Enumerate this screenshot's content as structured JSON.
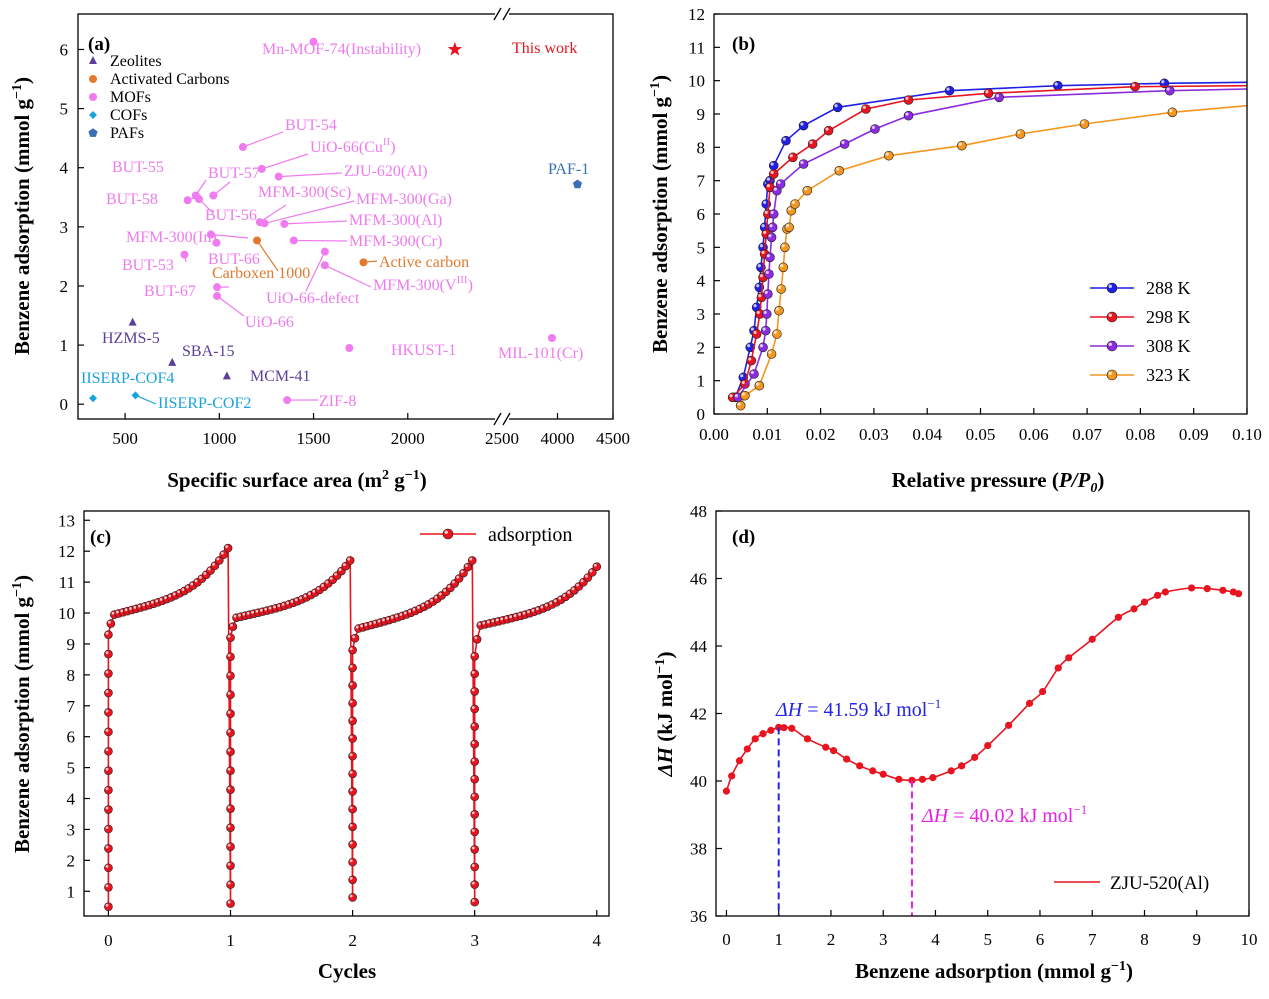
{
  "chart_data": [
    {
      "panel": "(a)",
      "type": "scatter",
      "xlabel": "Specific surface area (m² g⁻¹)",
      "ylabel": "Benzene adsorption (mmol g⁻¹)",
      "x_ticks": [
        "500",
        "1000",
        "1500",
        "2000",
        "2500",
        "4000",
        "4500"
      ],
      "y_ticks": [
        "0",
        "1",
        "2",
        "3",
        "4",
        "5",
        "6"
      ],
      "xlim_segments": [
        [
          250,
          2500
        ],
        [
          3500,
          4500
        ]
      ],
      "ylim": [
        -0.25,
        6.6
      ],
      "legend": {
        "placement": "top-left",
        "entries": [
          {
            "name": "Zeolites",
            "color": "#5b3f9a",
            "marker": "triangle"
          },
          {
            "name": "Activated Carbons",
            "color": "#e17a2e",
            "marker": "circle"
          },
          {
            "name": "MOFs",
            "color": "#ef7bef",
            "marker": "circle"
          },
          {
            "name": "COFs",
            "color": "#1ba3dd",
            "marker": "diamond"
          },
          {
            "name": "PAFs",
            "color": "#3a6fb5",
            "marker": "pentagon"
          }
        ],
        "this_work": {
          "name": "This work",
          "color": "#e8141f",
          "marker": "star"
        }
      },
      "points": [
        {
          "label": "Mn-MOF-74(Instability)",
          "x": 1500,
          "y": 6.13,
          "cls": "MOFs"
        },
        {
          "label": "BUT-54",
          "x": 1125,
          "y": 4.35,
          "cls": "MOFs"
        },
        {
          "label": "UiO-66(Cu",
          "sup": "II",
          "suffix": ")",
          "x": 1225,
          "y": 3.98,
          "cls": "MOFs"
        },
        {
          "label": "ZJU-620(Al)",
          "x": 1315,
          "y": 3.85,
          "cls": "MOFs"
        },
        {
          "label": "BUT-57",
          "x": 968,
          "y": 3.53,
          "cls": "MOFs"
        },
        {
          "label": "BUT-55",
          "x": 875,
          "y": 3.53,
          "cls": "MOFs"
        },
        {
          "label": "BUT-58",
          "x": 832,
          "y": 3.45,
          "cls": "MOFs"
        },
        {
          "label": "BUT-56",
          "x": 892,
          "y": 3.47,
          "cls": "MOFs"
        },
        {
          "label": "MFM-300(Sc)",
          "x": 1215,
          "y": 3.08,
          "cls": "MOFs"
        },
        {
          "label": "MFM-300(Ga)",
          "x": 1240,
          "y": 3.06,
          "cls": "MOFs"
        },
        {
          "label": "MFM-300(Al)",
          "x": 1345,
          "y": 3.05,
          "cls": "MOFs"
        },
        {
          "label": "MFM-300(In)",
          "x": 955,
          "y": 2.87,
          "cls": "MOFs"
        },
        {
          "label": "MFM-300(Cr)",
          "x": 1395,
          "y": 2.77,
          "cls": "MOFs"
        },
        {
          "label": "BUT-66",
          "x": 985,
          "y": 2.73,
          "cls": "MOFs"
        },
        {
          "label": "BUT-53",
          "x": 815,
          "y": 2.53,
          "cls": "MOFs"
        },
        {
          "label": "UiO-66-defect",
          "x": 1560,
          "y": 2.58,
          "cls": "MOFs"
        },
        {
          "label": "MFM-300(V",
          "sup": "III",
          "suffix": ")",
          "x": 1560,
          "y": 2.35,
          "cls": "MOFs"
        },
        {
          "label": "BUT-67",
          "x": 988,
          "y": 1.98,
          "cls": "MOFs"
        },
        {
          "label": "UiO-66",
          "x": 988,
          "y": 1.83,
          "cls": "MOFs"
        },
        {
          "label": "HKUST-1",
          "x": 1690,
          "y": 0.95,
          "cls": "MOFs"
        },
        {
          "label": "MIL-101(Cr)",
          "x": 3950,
          "y": 1.12,
          "cls": "MOFs"
        },
        {
          "label": "ZIF-8",
          "x": 1360,
          "y": 0.07,
          "cls": "MOFs"
        },
        {
          "label": "Carboxen 1000",
          "x": 1200,
          "y": 2.77,
          "cls": "Activated Carbons"
        },
        {
          "label": "Active carbon",
          "x": 1765,
          "y": 2.4,
          "cls": "Activated Carbons"
        },
        {
          "label": "HZMS-5",
          "x": 540,
          "y": 1.38,
          "cls": "Zeolites"
        },
        {
          "label": "SBA-15",
          "x": 750,
          "y": 0.7,
          "cls": "Zeolites"
        },
        {
          "label": "MCM-41",
          "x": 1040,
          "y": 0.47,
          "cls": "Zeolites"
        },
        {
          "label": "IISERP-COF4",
          "x": 330,
          "y": 0.1,
          "cls": "COFs"
        },
        {
          "label": "IISERP-COF2",
          "x": 555,
          "y": 0.15,
          "cls": "COFs"
        },
        {
          "label": "PAF-1",
          "x": 4180,
          "y": 3.72,
          "cls": "PAFs"
        },
        {
          "label": "This work",
          "x": 2250,
          "y": 6.0,
          "cls": "This work"
        }
      ]
    },
    {
      "panel": "(b)",
      "type": "line",
      "xlabel": "Relative pressure (P/P₀)",
      "ylabel": "Benzene adsorption (mmol g⁻¹)",
      "x_ticks": [
        "0.00",
        "0.01",
        "0.02",
        "0.03",
        "0.04",
        "0.05",
        "0.06",
        "0.07",
        "0.08",
        "0.09",
        "0.10"
      ],
      "y_ticks": [
        "0",
        "1",
        "2",
        "3",
        "4",
        "5",
        "6",
        "7",
        "8",
        "9",
        "10",
        "11",
        "12"
      ],
      "xlim": [
        0,
        0.1
      ],
      "ylim": [
        0,
        12
      ],
      "legend": {
        "placement": "bottom-right"
      },
      "series": [
        {
          "name": "288 K",
          "color": "#1f1fe6",
          "x": [
            0.004,
            0.0055,
            0.0068,
            0.0075,
            0.008,
            0.0085,
            0.0088,
            0.0092,
            0.0095,
            0.0098,
            0.0101,
            0.0105,
            0.0112,
            0.0135,
            0.0168,
            0.0232,
            0.0442,
            0.0645,
            0.0845,
            0.1
          ],
          "y": [
            0.5,
            1.1,
            2.0,
            2.5,
            3.2,
            3.8,
            4.4,
            5.0,
            5.6,
            6.3,
            6.9,
            7.0,
            7.45,
            8.2,
            8.65,
            9.2,
            9.7,
            9.85,
            9.92,
            9.95
          ]
        },
        {
          "name": "298 K",
          "color": "#e8141f",
          "x": [
            0.0035,
            0.0058,
            0.007,
            0.008,
            0.0086,
            0.0089,
            0.0092,
            0.0095,
            0.0098,
            0.0101,
            0.0105,
            0.0112,
            0.0148,
            0.0185,
            0.0215,
            0.0285,
            0.0365,
            0.0515,
            0.079,
            0.1
          ],
          "y": [
            0.5,
            0.9,
            1.6,
            2.4,
            3.0,
            3.5,
            4.1,
            4.8,
            5.4,
            6.0,
            6.8,
            7.2,
            7.7,
            8.1,
            8.5,
            9.15,
            9.42,
            9.62,
            9.82,
            9.85
          ]
        },
        {
          "name": "308 K",
          "color": "#8b2be2",
          "x": [
            0.0045,
            0.0075,
            0.0092,
            0.0097,
            0.0099,
            0.0101,
            0.0103,
            0.0105,
            0.0108,
            0.011,
            0.0112,
            0.0118,
            0.0125,
            0.0168,
            0.0245,
            0.0302,
            0.0365,
            0.0535,
            0.0855,
            0.1
          ],
          "y": [
            0.5,
            1.2,
            2.0,
            2.5,
            3.0,
            3.6,
            4.2,
            4.7,
            5.3,
            5.6,
            6.0,
            6.7,
            6.9,
            7.5,
            8.1,
            8.55,
            8.95,
            9.5,
            9.7,
            9.75
          ]
        },
        {
          "name": "323 K",
          "color": "#f5961e",
          "x": [
            0.005,
            0.0058,
            0.0085,
            0.0108,
            0.0118,
            0.0122,
            0.0126,
            0.013,
            0.0133,
            0.0137,
            0.0141,
            0.0145,
            0.0152,
            0.0175,
            0.0235,
            0.0328,
            0.0465,
            0.0575,
            0.0695,
            0.086,
            0.1
          ],
          "y": [
            0.25,
            0.55,
            0.85,
            1.8,
            2.4,
            3.1,
            3.75,
            4.4,
            5.0,
            5.55,
            5.6,
            6.1,
            6.3,
            6.7,
            7.3,
            7.75,
            8.05,
            8.4,
            8.7,
            9.05,
            9.25
          ]
        }
      ]
    },
    {
      "panel": "(c)",
      "type": "line",
      "xlabel": "Cycles",
      "ylabel": "Benzene adsorption (mmol g⁻¹)",
      "x_ticks": [
        "0",
        "1",
        "2",
        "3",
        "4"
      ],
      "y_ticks": [
        "1",
        "2",
        "3",
        "4",
        "5",
        "6",
        "7",
        "8",
        "9",
        "10",
        "11",
        "12",
        "13"
      ],
      "xlim": [
        -0.2,
        4.1
      ],
      "ylim": [
        0.2,
        13.3
      ],
      "legend": {
        "placement": "top-right"
      },
      "series": [
        {
          "name": "adsorption",
          "color": "#e8141f",
          "cycles": [
            {
              "start": 0,
              "end": 0.98,
              "y_start": 0.5,
              "y_knee": 9.3,
              "y_plateau": 9.95,
              "y_end": 12.1
            },
            {
              "start": 1,
              "end": 1.98,
              "y_start": 0.6,
              "y_knee": 9.2,
              "y_plateau": 9.85,
              "y_end": 11.7
            },
            {
              "start": 2,
              "end": 2.98,
              "y_start": 0.8,
              "y_knee": 8.8,
              "y_plateau": 9.5,
              "y_end": 11.7
            },
            {
              "start": 3,
              "end": 4.0,
              "y_start": 0.65,
              "y_knee": 8.6,
              "y_plateau": 9.6,
              "y_end": 11.5
            }
          ]
        }
      ]
    },
    {
      "panel": "(d)",
      "type": "line",
      "xlabel": "Benzene adsorption (mmol g⁻¹)",
      "ylabel": "ΔH (kJ mol⁻¹)",
      "x_ticks": [
        "0",
        "1",
        "2",
        "3",
        "4",
        "5",
        "6",
        "7",
        "8",
        "9",
        "10"
      ],
      "y_ticks": [
        "36",
        "38",
        "40",
        "42",
        "44",
        "46",
        "48"
      ],
      "xlim": [
        -0.2,
        10
      ],
      "ylim": [
        36,
        48
      ],
      "legend": {
        "placement": "bottom-right"
      },
      "series": [
        {
          "name": "ZJU-520(Al)",
          "color": "#e8141f",
          "x": [
            0.0,
            0.1,
            0.25,
            0.4,
            0.55,
            0.7,
            0.85,
            1.0,
            1.1,
            1.25,
            1.55,
            1.9,
            2.05,
            2.3,
            2.55,
            2.8,
            3.0,
            3.3,
            3.55,
            3.75,
            3.95,
            4.3,
            4.5,
            4.75,
            5.0,
            5.4,
            5.8,
            6.05,
            6.35,
            6.55,
            7.0,
            7.5,
            7.8,
            8.0,
            8.25,
            8.4,
            8.9,
            9.2,
            9.5,
            9.7,
            9.8
          ],
          "y": [
            39.7,
            40.15,
            40.6,
            40.95,
            41.25,
            41.4,
            41.5,
            41.59,
            41.58,
            41.56,
            41.25,
            41.0,
            40.9,
            40.65,
            40.45,
            40.3,
            40.2,
            40.05,
            40.02,
            40.05,
            40.1,
            40.3,
            40.45,
            40.7,
            41.05,
            41.65,
            42.3,
            42.65,
            43.35,
            43.65,
            44.2,
            44.85,
            45.1,
            45.3,
            45.5,
            45.6,
            45.72,
            45.7,
            45.65,
            45.6,
            45.55
          ]
        }
      ],
      "annotations": [
        {
          "text": "ΔH = 41.59 kJ mol⁻¹",
          "x": 1.0,
          "y": 41.59,
          "color": "#2424e6"
        },
        {
          "text": "ΔH = 40.02 kJ mol⁻¹",
          "x": 3.55,
          "y": 40.02,
          "color": "#e620e6"
        }
      ]
    }
  ],
  "labels": {
    "a": {
      "panel": "(a)",
      "xlabel": "Specific surface area (m",
      "xlabel_sup": "2",
      "xlabel_rest": " g",
      "xlabel_sup2": "−1",
      "xlabel_end": ")",
      "ylabel": "Benzene adsorption (mmol g",
      "ylabel_sup": "−1",
      "ylabel_end": ")"
    },
    "b": {
      "panel": "(b)",
      "xlabel": "Relative pressure (",
      "xlabel_it": "P/P",
      "xlabel_sub": "0",
      "xlabel_end": ")",
      "ylabel": "Benzene adsorption (mmol g",
      "ylabel_sup": "−1",
      "ylabel_end": ")"
    },
    "c": {
      "panel": "(c)",
      "xlabel": "Cycles",
      "ylabel": "Benzene adsorption (mmol g",
      "ylabel_sup": "−1",
      "ylabel_end": ")"
    },
    "d": {
      "panel": "(d)",
      "xlabel": "Benzene adsorption (mmol g",
      "xlabel_sup": "−1",
      "xlabel_end": ")",
      "ylabel_it": "ΔH",
      "ylabel": " (kJ mol",
      "ylabel_sup": "−1",
      "ylabel_end": ")",
      "ann1_it": "ΔH",
      "ann1": " = 41.59 kJ mol",
      "ann1_sup": "−1",
      "ann2_it": "ΔH",
      "ann2": " = 40.02 kJ mol",
      "ann2_sup": "−1"
    }
  }
}
